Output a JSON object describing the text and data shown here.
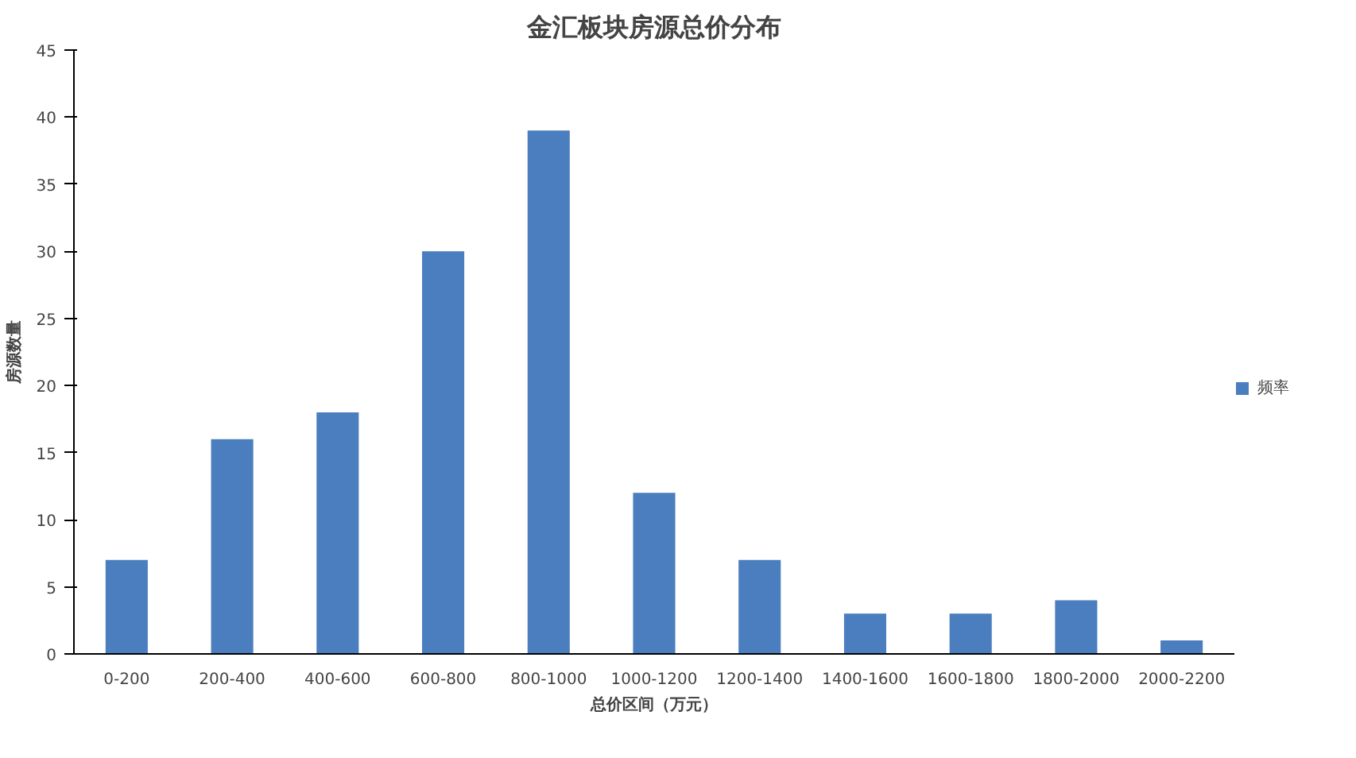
{
  "chart_data": {
    "type": "bar",
    "title": "金汇板块房源总价分布",
    "xlabel": "总价区间（万元）",
    "ylabel": "房源数量",
    "categories": [
      "0-200",
      "200-400",
      "400-600",
      "600-800",
      "800-1000",
      "1000-1200",
      "1200-1400",
      "1400-1600",
      "1600-1800",
      "1800-2000",
      "2000-2200"
    ],
    "series": [
      {
        "name": "频率",
        "color": "#4a7ebf",
        "values": [
          7,
          16,
          18,
          30,
          39,
          12,
          7,
          3,
          3,
          4,
          1
        ]
      }
    ],
    "ylim": [
      0,
      45
    ],
    "yticks": [
      0,
      5,
      10,
      15,
      20,
      25,
      30,
      35,
      40,
      45
    ],
    "grid": false,
    "legend": "right"
  }
}
